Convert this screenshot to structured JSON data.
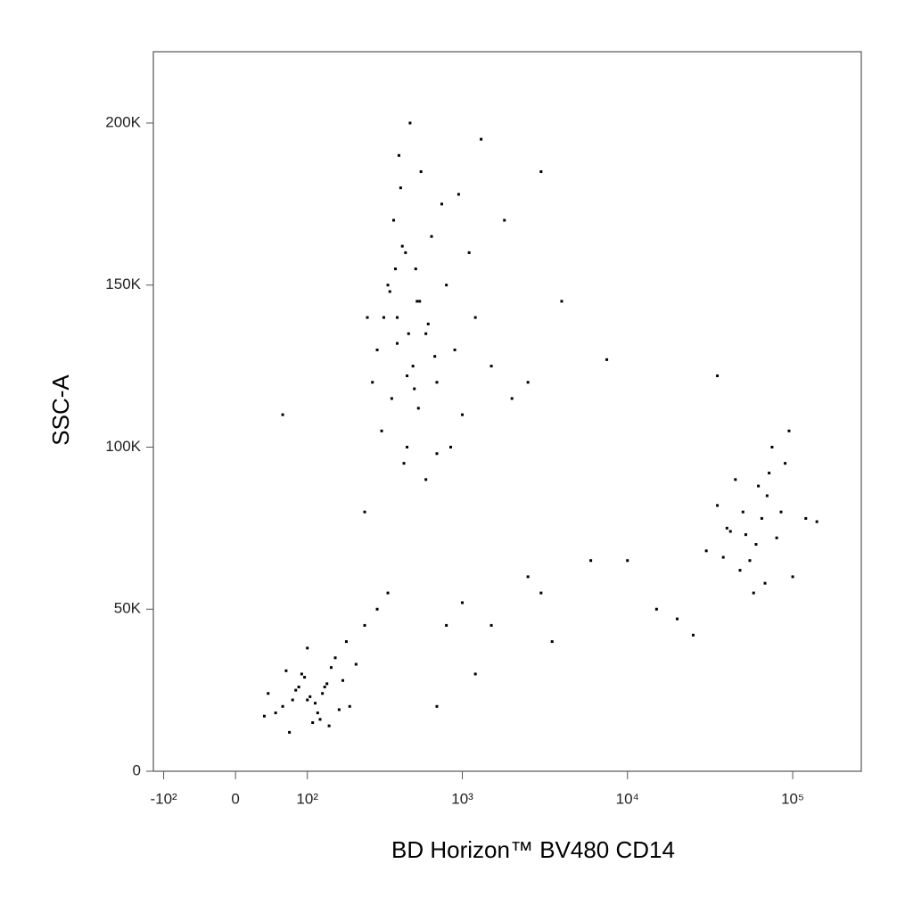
{
  "chart_data": {
    "type": "scatter",
    "xlabel": "BD Horizon™ BV480  CD14",
    "ylabel": "SSC-A",
    "xscale": "biexponential",
    "xscale_width": 85,
    "color": "#000000",
    "xlim": [
      -120,
      260000
    ],
    "ylim": [
      0,
      222000
    ],
    "xticks": [
      {
        "value": -100,
        "label": "-10²"
      },
      0,
      {
        "value": 100,
        "label": "10²"
      },
      {
        "value": 1000,
        "label": "10³"
      },
      {
        "value": 10000,
        "label": "10⁴"
      },
      {
        "value": 100000,
        "label": "10⁵"
      }
    ],
    "yticks": [
      0,
      {
        "value": 50000,
        "label": "50K"
      },
      {
        "value": 100000,
        "label": "100K"
      },
      {
        "value": 150000,
        "label": "150K"
      },
      {
        "value": 200000,
        "label": "200K"
      }
    ],
    "x": [
      300,
      350,
      400,
      450,
      500,
      550,
      600,
      700,
      800,
      1000,
      380,
      420,
      460,
      520,
      650,
      900,
      1200,
      1500,
      2000,
      2500,
      330,
      370,
      410,
      480,
      560,
      750,
      320,
      440,
      600,
      850,
      1100,
      280,
      260,
      390,
      470,
      530,
      680,
      950,
      1300,
      1800,
      3000,
      430,
      510,
      620,
      360,
      400,
      460,
      540,
      700,
      250,
      60,
      80,
      100,
      120,
      140,
      90,
      110,
      130,
      70,
      150,
      180,
      200,
      50,
      40,
      160,
      100,
      85,
      115,
      125,
      95,
      75,
      170,
      220,
      250,
      35,
      105,
      135,
      65,
      145,
      190,
      300,
      350,
      40000,
      50000,
      60000,
      70000,
      55000,
      45000,
      65000,
      80000,
      90000,
      35000,
      30000,
      100000,
      120000,
      75000,
      58000,
      48000,
      62000,
      85000,
      42000,
      95000,
      52000,
      68000,
      140000,
      38000,
      72000,
      1000,
      1500,
      2500,
      3500,
      6000,
      10000,
      15000,
      20000,
      1200,
      700,
      800,
      3000,
      25000,
      35000,
      7500,
      60,
      4000
    ],
    "y": [
      130000,
      150000,
      140000,
      160000,
      125000,
      145000,
      135000,
      120000,
      150000,
      110000,
      170000,
      180000,
      100000,
      155000,
      165000,
      130000,
      140000,
      125000,
      115000,
      120000,
      140000,
      115000,
      190000,
      200000,
      185000,
      175000,
      105000,
      95000,
      90000,
      100000,
      160000,
      120000,
      140000,
      155000,
      135000,
      145000,
      128000,
      178000,
      195000,
      170000,
      185000,
      162000,
      118000,
      138000,
      148000,
      132000,
      122000,
      112000,
      98000,
      80000,
      20000,
      25000,
      22000,
      18000,
      27000,
      30000,
      15000,
      24000,
      12000,
      32000,
      28000,
      20000,
      18000,
      24000,
      35000,
      38000,
      26000,
      21000,
      16000,
      29000,
      22000,
      19000,
      33000,
      45000,
      17000,
      23000,
      26000,
      31000,
      14000,
      40000,
      50000,
      55000,
      75000,
      80000,
      70000,
      85000,
      65000,
      90000,
      78000,
      72000,
      95000,
      82000,
      68000,
      60000,
      78000,
      100000,
      55000,
      62000,
      88000,
      80000,
      74000,
      105000,
      73000,
      58000,
      77000,
      66000,
      92000,
      52000,
      45000,
      60000,
      40000,
      65000,
      65000,
      50000,
      47000,
      30000,
      20000,
      45000,
      55000,
      42000,
      122000,
      127000,
      110000,
      145000
    ]
  }
}
